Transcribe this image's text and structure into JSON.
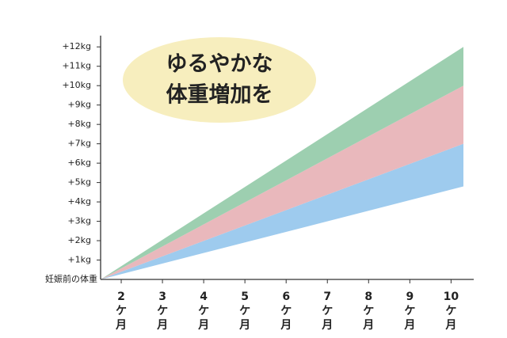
{
  "chart_data": {
    "type": "stacked_area",
    "title": [
      "ゆるやかな",
      "体重増加を"
    ],
    "x": [
      1.5,
      10.3
    ],
    "xlim": [
      1.5,
      10.55
    ],
    "xticks": [
      2,
      3,
      4,
      5,
      6,
      7,
      8,
      9,
      10
    ],
    "xtick_suffix": [
      "ケ",
      "月"
    ],
    "series": [
      {
        "color": null,
        "values": [
          0,
          4.8
        ]
      },
      {
        "color": "#9ecbee",
        "values": [
          0,
          2.2
        ]
      },
      {
        "color": "#e9b8bc",
        "values": [
          0,
          3
        ]
      },
      {
        "color": "#9dcfb0",
        "values": [
          0,
          2
        ]
      }
    ],
    "ylim": [
      0,
      12.5
    ],
    "yticks": [
      {
        "value": 0,
        "label": "妊娠前の体重"
      },
      {
        "value": 1,
        "label": "+1kg"
      },
      {
        "value": 2,
        "label": "+2kg"
      },
      {
        "value": 3,
        "label": "+3kg"
      },
      {
        "value": 4,
        "label": "+4kg"
      },
      {
        "value": 5,
        "label": "+5kg"
      },
      {
        "value": 6,
        "label": "+6kg"
      },
      {
        "value": 7,
        "label": "+7kg"
      },
      {
        "value": 8,
        "label": "+8kg"
      },
      {
        "value": 9,
        "label": "+9kg"
      },
      {
        "value": 10,
        "label": "+10kg"
      },
      {
        "value": 11,
        "label": "+11kg"
      },
      {
        "value": 12,
        "label": "+12kg"
      }
    ]
  }
}
